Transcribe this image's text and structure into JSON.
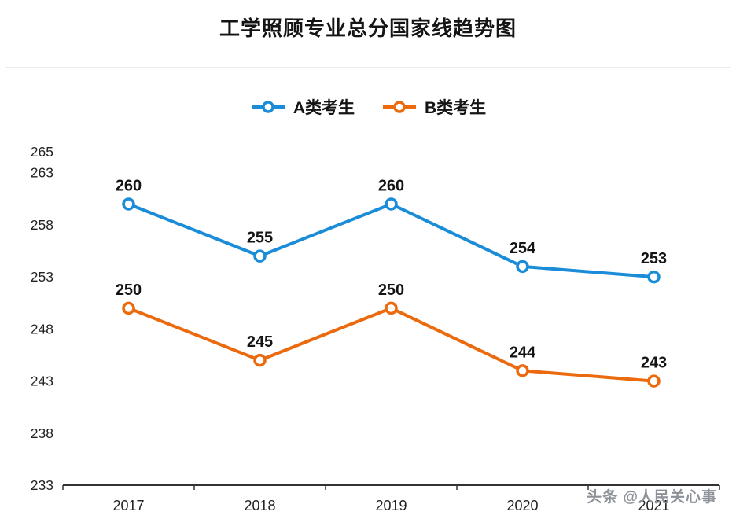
{
  "page": {
    "title": "工学照顾专业总分国家线趋势图",
    "watermark": "头条 @人民关心事"
  },
  "chart_data": {
    "type": "line",
    "title": "工学照顾专业总分国家线趋势图",
    "categories": [
      "2017",
      "2018",
      "2019",
      "2020",
      "2021"
    ],
    "series": [
      {
        "name": "A类考生",
        "color": "#1a8cd8",
        "values": [
          260,
          255,
          260,
          254,
          253
        ]
      },
      {
        "name": "B类考生",
        "color": "#eb6a0e",
        "values": [
          250,
          245,
          250,
          244,
          243
        ]
      }
    ],
    "yticks": [
      265,
      263,
      258,
      253,
      248,
      243,
      238,
      233
    ],
    "ylim": [
      233,
      266
    ],
    "xlabel": "",
    "ylabel": "",
    "legend_position": "top",
    "grid": false,
    "marker": "open-circle",
    "axis_color": "#333333",
    "label_color": "#141414"
  }
}
